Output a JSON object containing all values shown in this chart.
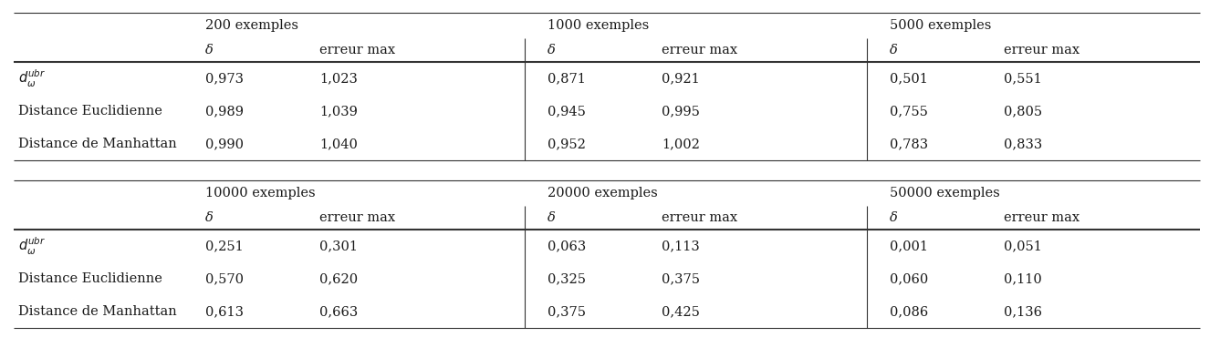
{
  "top_table": {
    "group_headers": [
      "200 exemples",
      "1000 exemples",
      "5000 exemples"
    ],
    "subheaders": [
      "δ",
      "erreur max"
    ],
    "row_labels": [
      "$d_{\\omega}^{ubr}$",
      "Distance Euclidienne",
      "Distance de Manhattan"
    ],
    "data": [
      [
        "0,973",
        "1,023",
        "0,871",
        "0,921",
        "0,501",
        "0,551"
      ],
      [
        "0,989",
        "1,039",
        "0,945",
        "0,995",
        "0,755",
        "0,805"
      ],
      [
        "0,990",
        "1,040",
        "0,952",
        "1,002",
        "0,783",
        "0,833"
      ]
    ]
  },
  "bottom_table": {
    "group_headers": [
      "10000 exemples",
      "20000 exemples",
      "50000 exemples"
    ],
    "subheaders": [
      "δ",
      "erreur max"
    ],
    "row_labels": [
      "$d_{\\omega}^{ubr}$",
      "Distance Euclidienne",
      "Distance de Manhattan"
    ],
    "data": [
      [
        "0,251",
        "0,301",
        "0,063",
        "0,113",
        "0,001",
        "0,051"
      ],
      [
        "0,570",
        "0,620",
        "0,325",
        "0,375",
        "0,060",
        "0,110"
      ],
      [
        "0,613",
        "0,663",
        "0,375",
        "0,425",
        "0,086",
        "0,136"
      ]
    ]
  },
  "bg_color": "#ffffff",
  "text_color": "#1a1a1a",
  "line_color": "#333333",
  "font_size": 10.5
}
